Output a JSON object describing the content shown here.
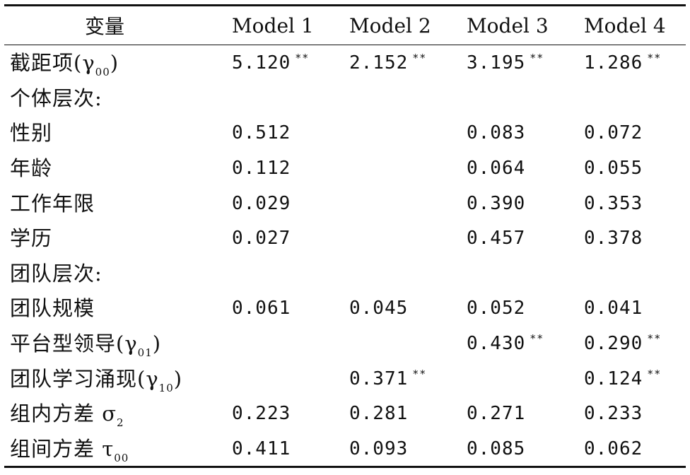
{
  "table": {
    "headers": [
      "变量",
      "Model 1",
      "Model 2",
      "Model 3",
      "Model 4"
    ],
    "rows": [
      {
        "label": "截距项(γ",
        "sub": "00",
        "suffix": ")",
        "values": [
          {
            "v": "5.120",
            "sig": "**"
          },
          {
            "v": "2.152",
            "sig": "**"
          },
          {
            "v": "3.195",
            "sig": "**"
          },
          {
            "v": "1.286",
            "sig": "**"
          }
        ]
      },
      {
        "label": "个体层次:",
        "sub": "",
        "suffix": "",
        "values": [
          {
            "v": "",
            "sig": ""
          },
          {
            "v": "",
            "sig": ""
          },
          {
            "v": "",
            "sig": ""
          },
          {
            "v": "",
            "sig": ""
          }
        ]
      },
      {
        "label": "性别",
        "sub": "",
        "suffix": "",
        "values": [
          {
            "v": "0.512",
            "sig": ""
          },
          {
            "v": "",
            "sig": ""
          },
          {
            "v": "0.083",
            "sig": ""
          },
          {
            "v": "0.072",
            "sig": ""
          }
        ]
      },
      {
        "label": "年龄",
        "sub": "",
        "suffix": "",
        "values": [
          {
            "v": "0.112",
            "sig": ""
          },
          {
            "v": "",
            "sig": ""
          },
          {
            "v": "0.064",
            "sig": ""
          },
          {
            "v": "0.055",
            "sig": ""
          }
        ]
      },
      {
        "label": "工作年限",
        "sub": "",
        "suffix": "",
        "values": [
          {
            "v": "0.029",
            "sig": ""
          },
          {
            "v": "",
            "sig": ""
          },
          {
            "v": "0.390",
            "sig": ""
          },
          {
            "v": "0.353",
            "sig": ""
          }
        ]
      },
      {
        "label": "学历",
        "sub": "",
        "suffix": "",
        "values": [
          {
            "v": "0.027",
            "sig": ""
          },
          {
            "v": "",
            "sig": ""
          },
          {
            "v": "0.457",
            "sig": ""
          },
          {
            "v": "0.378",
            "sig": ""
          }
        ]
      },
      {
        "label": "团队层次:",
        "sub": "",
        "suffix": "",
        "values": [
          {
            "v": "",
            "sig": ""
          },
          {
            "v": "",
            "sig": ""
          },
          {
            "v": "",
            "sig": ""
          },
          {
            "v": "",
            "sig": ""
          }
        ]
      },
      {
        "label": "团队规模",
        "sub": "",
        "suffix": "",
        "values": [
          {
            "v": "0.061",
            "sig": ""
          },
          {
            "v": "0.045",
            "sig": ""
          },
          {
            "v": "0.052",
            "sig": ""
          },
          {
            "v": "0.041",
            "sig": ""
          }
        ]
      },
      {
        "label": "平台型领导(γ",
        "sub": "01",
        "suffix": ")",
        "values": [
          {
            "v": "",
            "sig": ""
          },
          {
            "v": "",
            "sig": ""
          },
          {
            "v": "0.430",
            "sig": "**"
          },
          {
            "v": "0.290",
            "sig": "**"
          }
        ]
      },
      {
        "label": "团队学习涌现(γ",
        "sub": "10",
        "suffix": ")",
        "values": [
          {
            "v": "",
            "sig": ""
          },
          {
            "v": "0.371",
            "sig": "**"
          },
          {
            "v": "",
            "sig": ""
          },
          {
            "v": "0.124",
            "sig": "**"
          }
        ]
      },
      {
        "label": "组内方差 σ",
        "sub": "2",
        "suffix": "",
        "values": [
          {
            "v": "0.223",
            "sig": ""
          },
          {
            "v": "0.281",
            "sig": ""
          },
          {
            "v": "0.271",
            "sig": ""
          },
          {
            "v": "0.233",
            "sig": ""
          }
        ]
      },
      {
        "label": "组间方差 τ",
        "sub": "00",
        "suffix": "",
        "values": [
          {
            "v": "0.411",
            "sig": ""
          },
          {
            "v": "0.093",
            "sig": ""
          },
          {
            "v": "0.085",
            "sig": ""
          },
          {
            "v": "0.062",
            "sig": ""
          }
        ]
      }
    ]
  }
}
